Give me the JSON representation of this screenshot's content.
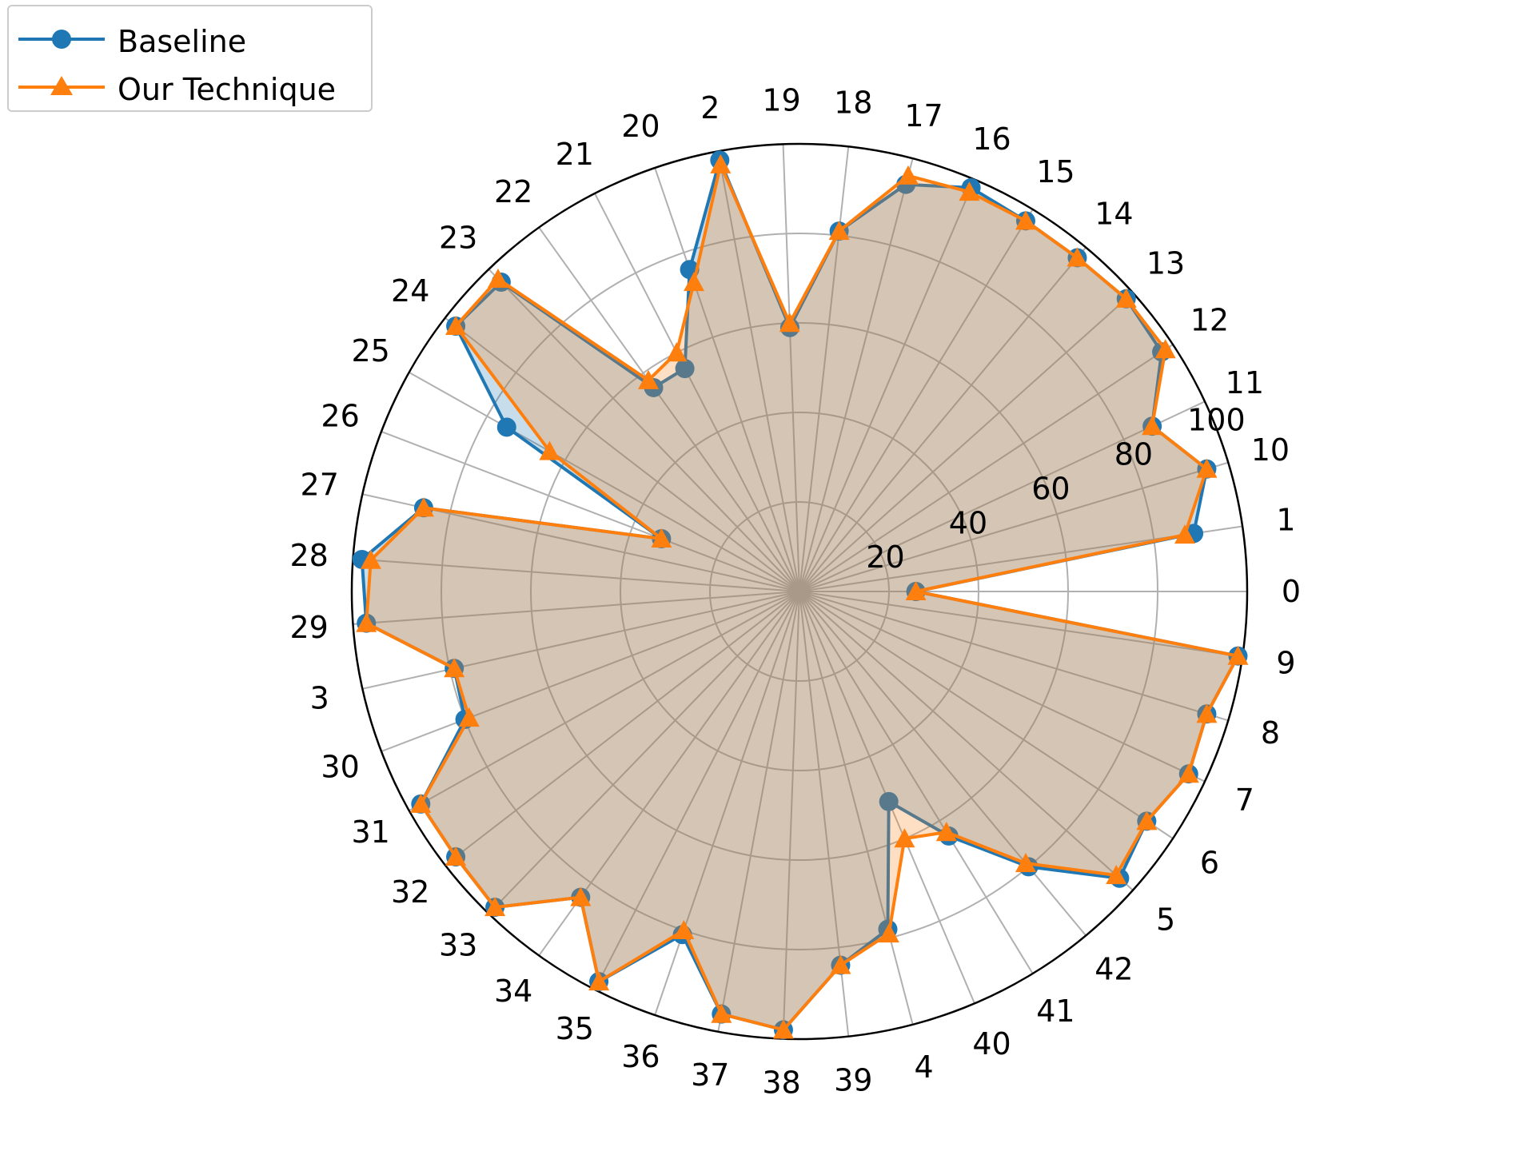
{
  "chart_data": {
    "type": "radar",
    "categories": [
      "0",
      "1",
      "10",
      "11",
      "12",
      "13",
      "14",
      "15",
      "16",
      "17",
      "18",
      "19",
      "2",
      "20",
      "21",
      "22",
      "23",
      "24",
      "25",
      "26",
      "27",
      "28",
      "29",
      "3",
      "30",
      "31",
      "32",
      "33",
      "34",
      "35",
      "36",
      "37",
      "38",
      "39",
      "4",
      "40",
      "41",
      "42",
      "5",
      "6",
      "7",
      "8",
      "9"
    ],
    "radial_ticks": [
      "20",
      "40",
      "60",
      "80",
      "100"
    ],
    "rlim": [
      0,
      100
    ],
    "grid": true,
    "legend_position": "top-left",
    "series": [
      {
        "name": "Baseline",
        "color": "#1f77b4",
        "marker": "circle",
        "values": [
          26,
          89,
          95,
          87,
          97,
          98,
          97,
          97,
          98,
          94,
          81,
          59,
          98,
          76,
          56,
          56,
          96,
          97,
          75,
          33,
          86,
          98,
          97,
          79,
          80,
          97,
          97,
          98,
          84,
          98,
          81,
          96,
          98,
          84,
          78,
          51,
          64,
          80,
          96,
          93,
          96,
          95,
          99
        ]
      },
      {
        "name": "Our Technique",
        "color": "#ff7f0e",
        "marker": "triangle",
        "values": [
          26,
          87,
          95,
          87,
          98,
          98,
          97,
          97,
          97,
          96,
          81,
          60,
          97,
          73,
          60,
          58,
          97,
          97,
          64,
          33,
          86,
          96,
          97,
          79,
          79,
          97,
          97,
          98,
          84,
          98,
          80,
          96,
          98,
          84,
          79,
          60,
          63,
          79,
          95,
          93,
          96,
          95,
          99
        ]
      }
    ]
  }
}
